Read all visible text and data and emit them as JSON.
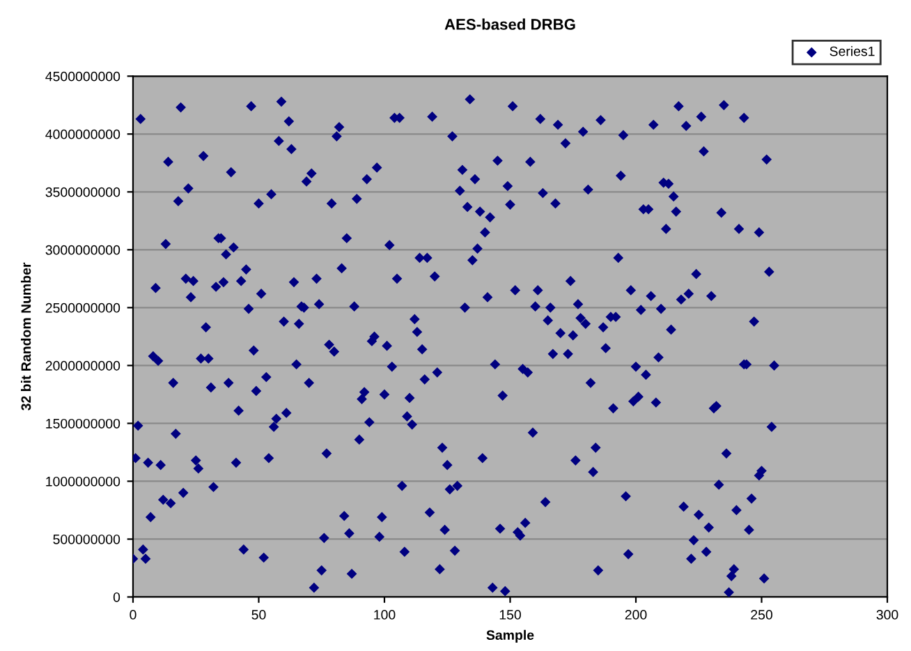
{
  "chart_data": {
    "type": "scatter",
    "title": "AES-based DRBG",
    "xlabel": "Sample",
    "ylabel": "32 bit Random Number",
    "xlim": [
      0,
      300
    ],
    "xticks": [
      0,
      50,
      100,
      150,
      200,
      250,
      300
    ],
    "ylim": [
      0,
      4500000000
    ],
    "yticks": [
      0,
      500000000,
      1000000000,
      1500000000,
      2000000000,
      2500000000,
      3000000000,
      3500000000,
      4000000000,
      4500000000
    ],
    "grid": "y",
    "legend": "top right",
    "marker": "diamond",
    "series": [
      {
        "name": "Series1",
        "color": "#000080",
        "x": [
          3,
          19,
          47,
          59,
          62,
          82,
          81,
          58,
          63,
          14,
          28,
          39,
          97,
          71,
          69,
          93,
          22,
          18,
          55,
          50,
          79,
          89,
          13,
          34,
          35,
          37,
          40,
          85,
          45,
          83,
          21,
          24,
          9,
          23,
          33,
          36,
          43,
          51,
          64,
          73,
          46,
          67,
          68,
          74,
          88,
          29,
          60,
          66,
          96,
          95,
          134,
          104,
          106,
          119,
          151,
          127,
          162,
          169,
          186,
          179,
          195,
          172,
          145,
          158,
          131,
          136,
          194,
          130,
          149,
          163,
          181,
          168,
          150,
          133,
          138,
          142,
          140,
          102,
          137,
          135,
          114,
          117,
          193,
          105,
          120,
          174,
          141,
          152,
          161,
          198,
          132,
          160,
          166,
          177,
          112,
          165,
          178,
          180,
          190,
          192,
          187,
          113,
          170,
          175,
          217,
          235,
          207,
          226,
          243,
          220,
          227,
          252,
          211,
          213,
          215,
          203,
          205,
          216,
          234,
          212,
          241,
          249,
          253,
          224,
          206,
          221,
          218,
          230,
          202,
          210,
          214,
          247,
          78,
          80,
          48,
          8,
          10,
          27,
          30,
          65,
          16,
          31,
          38,
          53,
          49,
          70,
          92,
          91,
          42,
          2,
          17,
          57,
          56,
          61,
          94,
          90,
          1,
          6,
          11,
          25,
          26,
          41,
          54,
          77,
          32,
          12,
          15,
          20,
          7,
          84,
          99,
          86,
          76,
          98,
          4,
          0,
          5,
          44,
          52,
          75,
          87,
          72,
          101,
          115,
          188,
          167,
          173,
          103,
          144,
          155,
          157,
          121,
          116,
          182,
          100,
          110,
          147,
          191,
          109,
          111,
          159,
          123,
          139,
          125,
          176,
          184,
          183,
          107,
          126,
          129,
          196,
          164,
          118,
          124,
          146,
          156,
          153,
          154,
          108,
          128,
          197,
          122,
          185,
          143,
          148,
          209,
          200,
          204,
          243,
          244,
          255,
          199,
          201,
          208,
          231,
          232,
          254,
          236,
          249,
          250,
          233,
          219,
          225,
          229,
          240,
          246,
          245,
          223,
          222,
          228,
          239,
          238,
          251,
          237
        ],
        "values": [
          4130000000,
          4230000000,
          4240000000,
          4280000000,
          4110000000,
          4060000000,
          3980000000,
          3940000000,
          3870000000,
          3760000000,
          3810000000,
          3670000000,
          3710000000,
          3660000000,
          3590000000,
          3610000000,
          3530000000,
          3420000000,
          3480000000,
          3400000000,
          3400000000,
          3440000000,
          3050000000,
          3100000000,
          3100000000,
          2960000000,
          3020000000,
          3100000000,
          2830000000,
          2840000000,
          2750000000,
          2730000000,
          2670000000,
          2590000000,
          2680000000,
          2720000000,
          2730000000,
          2620000000,
          2720000000,
          2750000000,
          2490000000,
          2510000000,
          2500000000,
          2530000000,
          2510000000,
          2330000000,
          2380000000,
          2360000000,
          2250000000,
          2210000000,
          4300000000,
          4140000000,
          4140000000,
          4150000000,
          4240000000,
          3980000000,
          4130000000,
          4080000000,
          4120000000,
          4020000000,
          3990000000,
          3920000000,
          3770000000,
          3760000000,
          3690000000,
          3610000000,
          3640000000,
          3510000000,
          3550000000,
          3490000000,
          3520000000,
          3400000000,
          3390000000,
          3370000000,
          3330000000,
          3280000000,
          3150000000,
          3040000000,
          3010000000,
          2910000000,
          2930000000,
          2930000000,
          2930000000,
          2750000000,
          2770000000,
          2730000000,
          2590000000,
          2650000000,
          2650000000,
          2650000000,
          2500000000,
          2510000000,
          2500000000,
          2530000000,
          2400000000,
          2390000000,
          2410000000,
          2360000000,
          2420000000,
          2420000000,
          2330000000,
          2290000000,
          2280000000,
          2260000000,
          4240000000,
          4250000000,
          4080000000,
          4150000000,
          4140000000,
          4070000000,
          3850000000,
          3780000000,
          3580000000,
          3570000000,
          3460000000,
          3350000000,
          3350000000,
          3330000000,
          3320000000,
          3180000000,
          3180000000,
          3150000000,
          2810000000,
          2790000000,
          2600000000,
          2620000000,
          2570000000,
          2600000000,
          2480000000,
          2490000000,
          2310000000,
          2380000000,
          2180000000,
          2120000000,
          2130000000,
          2080000000,
          2040000000,
          2060000000,
          2060000000,
          2010000000,
          1850000000,
          1810000000,
          1850000000,
          1900000000,
          1780000000,
          1850000000,
          1770000000,
          1710000000,
          1610000000,
          1480000000,
          1410000000,
          1540000000,
          1470000000,
          1590000000,
          1510000000,
          1360000000,
          1200000000,
          1160000000,
          1140000000,
          1180000000,
          1110000000,
          1160000000,
          1200000000,
          1240000000,
          950000000,
          840000000,
          810000000,
          900000000,
          690000000,
          700000000,
          690000000,
          550000000,
          510000000,
          520000000,
          410000000,
          330000000,
          330000000,
          410000000,
          340000000,
          230000000,
          200000000,
          80000000,
          2170000000,
          2140000000,
          2150000000,
          2100000000,
          2100000000,
          1990000000,
          2010000000,
          1970000000,
          1940000000,
          1940000000,
          1880000000,
          1850000000,
          1750000000,
          1720000000,
          1740000000,
          1630000000,
          1560000000,
          1490000000,
          1420000000,
          1290000000,
          1200000000,
          1140000000,
          1180000000,
          1290000000,
          1080000000,
          960000000,
          930000000,
          960000000,
          870000000,
          820000000,
          730000000,
          580000000,
          590000000,
          640000000,
          560000000,
          530000000,
          390000000,
          400000000,
          370000000,
          240000000,
          230000000,
          80000000,
          50000000,
          2070000000,
          1990000000,
          1920000000,
          2010000000,
          2010000000,
          2000000000,
          1690000000,
          1730000000,
          1680000000,
          1630000000,
          1650000000,
          1470000000,
          1240000000,
          1050000000,
          1090000000,
          970000000,
          780000000,
          710000000,
          600000000,
          750000000,
          850000000,
          580000000,
          490000000,
          330000000,
          390000000,
          240000000,
          180000000,
          160000000,
          40000000
        ]
      }
    ]
  }
}
